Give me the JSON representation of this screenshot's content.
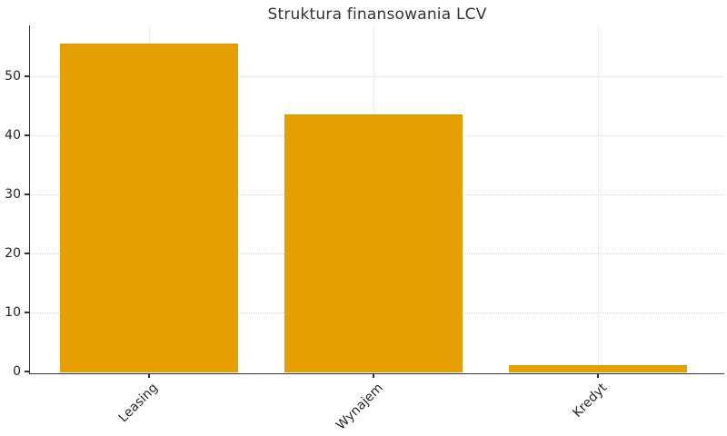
{
  "chart_data": {
    "type": "bar",
    "title": "Struktura finansowania LCV",
    "categories": [
      "Leasing",
      "Wynajem",
      "Kredyt"
    ],
    "values": [
      55.5,
      43.5,
      1.0
    ],
    "xlabel": "",
    "ylabel": "",
    "yticks": [
      0,
      10,
      20,
      30,
      40,
      50
    ],
    "ylim": [
      0,
      58.6
    ],
    "x_tick_rotation_deg": 45,
    "grid": {
      "horizontal": true,
      "vertical": true,
      "line_style": "dotted"
    },
    "legend": "none",
    "colors": {
      "bar": "#E69F00",
      "grid": "#D8D8D8",
      "axis": "#333333",
      "tick_text": "#262626",
      "title_text": "#333333",
      "background": "#FFFFFF"
    }
  }
}
